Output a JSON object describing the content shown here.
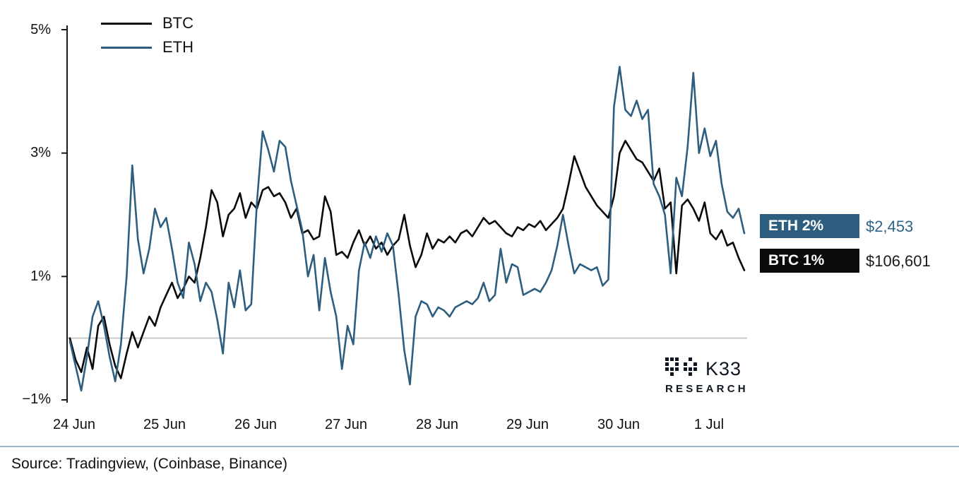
{
  "meta": {
    "source_note": "Source: Tradingview, (Coinbase, Binance)"
  },
  "legend": {
    "btc": "BTC",
    "eth": "ETH"
  },
  "badges": {
    "eth": {
      "label": "ETH 2%",
      "value": "$2,453",
      "color": "#2d5e80",
      "value_color": "#2e6488"
    },
    "btc": {
      "label": "BTC 1%",
      "value": "$106,601",
      "color": "#0b0b0d",
      "value_color": "#1a1b1d"
    }
  },
  "logo": {
    "line1": "K33",
    "line2": "RESEARCH"
  },
  "chart_data": {
    "type": "line",
    "title": "",
    "xlabel": "",
    "ylabel": "",
    "x_ticks": [
      "24 Jun",
      "25 Jun",
      "26 Jun",
      "27 Jun",
      "28 Jun",
      "29 Jun",
      "30 Jun",
      "1 Jul"
    ],
    "y_ticks": [
      "5%",
      "3%",
      "1%",
      "−1%"
    ],
    "y_tick_values": [
      5,
      3,
      1,
      -1
    ],
    "ylim": [
      -1,
      5
    ],
    "zero_line": 0,
    "grid": false,
    "legend_position": "top-left",
    "series": [
      {
        "name": "BTC",
        "color": "#0a0a0a",
        "values": [
          0.0,
          -0.35,
          -0.55,
          -0.15,
          -0.5,
          0.2,
          0.35,
          -0.1,
          -0.45,
          -0.65,
          -0.25,
          0.1,
          -0.15,
          0.1,
          0.35,
          0.2,
          0.5,
          0.7,
          0.9,
          0.65,
          0.8,
          1.0,
          0.9,
          1.3,
          1.8,
          2.4,
          2.2,
          1.65,
          2.0,
          2.1,
          2.35,
          1.95,
          2.2,
          2.1,
          2.4,
          2.45,
          2.3,
          2.35,
          2.2,
          1.95,
          2.1,
          1.7,
          1.75,
          1.6,
          1.65,
          2.3,
          2.05,
          1.35,
          1.4,
          1.3,
          1.55,
          1.75,
          1.5,
          1.65,
          1.45,
          1.55,
          1.35,
          1.5,
          1.6,
          2.0,
          1.5,
          1.15,
          1.35,
          1.7,
          1.45,
          1.6,
          1.55,
          1.65,
          1.55,
          1.7,
          1.75,
          1.65,
          1.8,
          1.95,
          1.85,
          1.9,
          1.8,
          1.7,
          1.65,
          1.8,
          1.75,
          1.85,
          1.8,
          1.9,
          1.75,
          1.85,
          1.95,
          2.1,
          2.5,
          2.95,
          2.7,
          2.45,
          2.3,
          2.15,
          2.05,
          1.95,
          2.3,
          3.0,
          3.2,
          3.05,
          2.9,
          2.85,
          2.7,
          2.55,
          2.75,
          2.1,
          2.2,
          1.05,
          2.15,
          2.25,
          2.1,
          1.9,
          2.2,
          1.7,
          1.6,
          1.75,
          1.5,
          1.55,
          1.3,
          1.1
        ]
      },
      {
        "name": "ETH",
        "color": "#2d5e80",
        "values": [
          -0.05,
          -0.45,
          -0.85,
          -0.3,
          0.35,
          0.6,
          0.2,
          -0.3,
          -0.7,
          -0.1,
          1.0,
          2.8,
          1.6,
          1.05,
          1.45,
          2.1,
          1.8,
          1.95,
          1.45,
          0.9,
          0.65,
          1.55,
          1.2,
          0.6,
          0.9,
          0.75,
          0.3,
          -0.25,
          0.9,
          0.5,
          1.1,
          0.45,
          0.55,
          2.2,
          3.35,
          3.05,
          2.7,
          3.2,
          3.1,
          2.55,
          2.15,
          1.75,
          1.0,
          1.35,
          0.45,
          1.3,
          0.75,
          0.35,
          -0.5,
          0.2,
          -0.1,
          1.1,
          1.55,
          1.3,
          1.65,
          1.4,
          1.7,
          1.5,
          0.7,
          -0.2,
          -0.75,
          0.35,
          0.6,
          0.55,
          0.35,
          0.5,
          0.45,
          0.35,
          0.5,
          0.55,
          0.6,
          0.55,
          0.65,
          0.9,
          0.6,
          0.7,
          1.45,
          0.9,
          1.2,
          1.15,
          0.7,
          0.75,
          0.8,
          0.75,
          0.9,
          1.1,
          1.5,
          2.0,
          1.5,
          1.05,
          1.2,
          1.15,
          1.1,
          1.15,
          0.85,
          0.95,
          3.75,
          4.4,
          3.7,
          3.6,
          3.85,
          3.55,
          3.7,
          2.5,
          2.3,
          2.0,
          1.05,
          2.6,
          2.3,
          3.1,
          4.3,
          3.0,
          3.4,
          2.95,
          3.2,
          2.5,
          2.05,
          1.95,
          2.1,
          1.7
        ]
      }
    ]
  }
}
